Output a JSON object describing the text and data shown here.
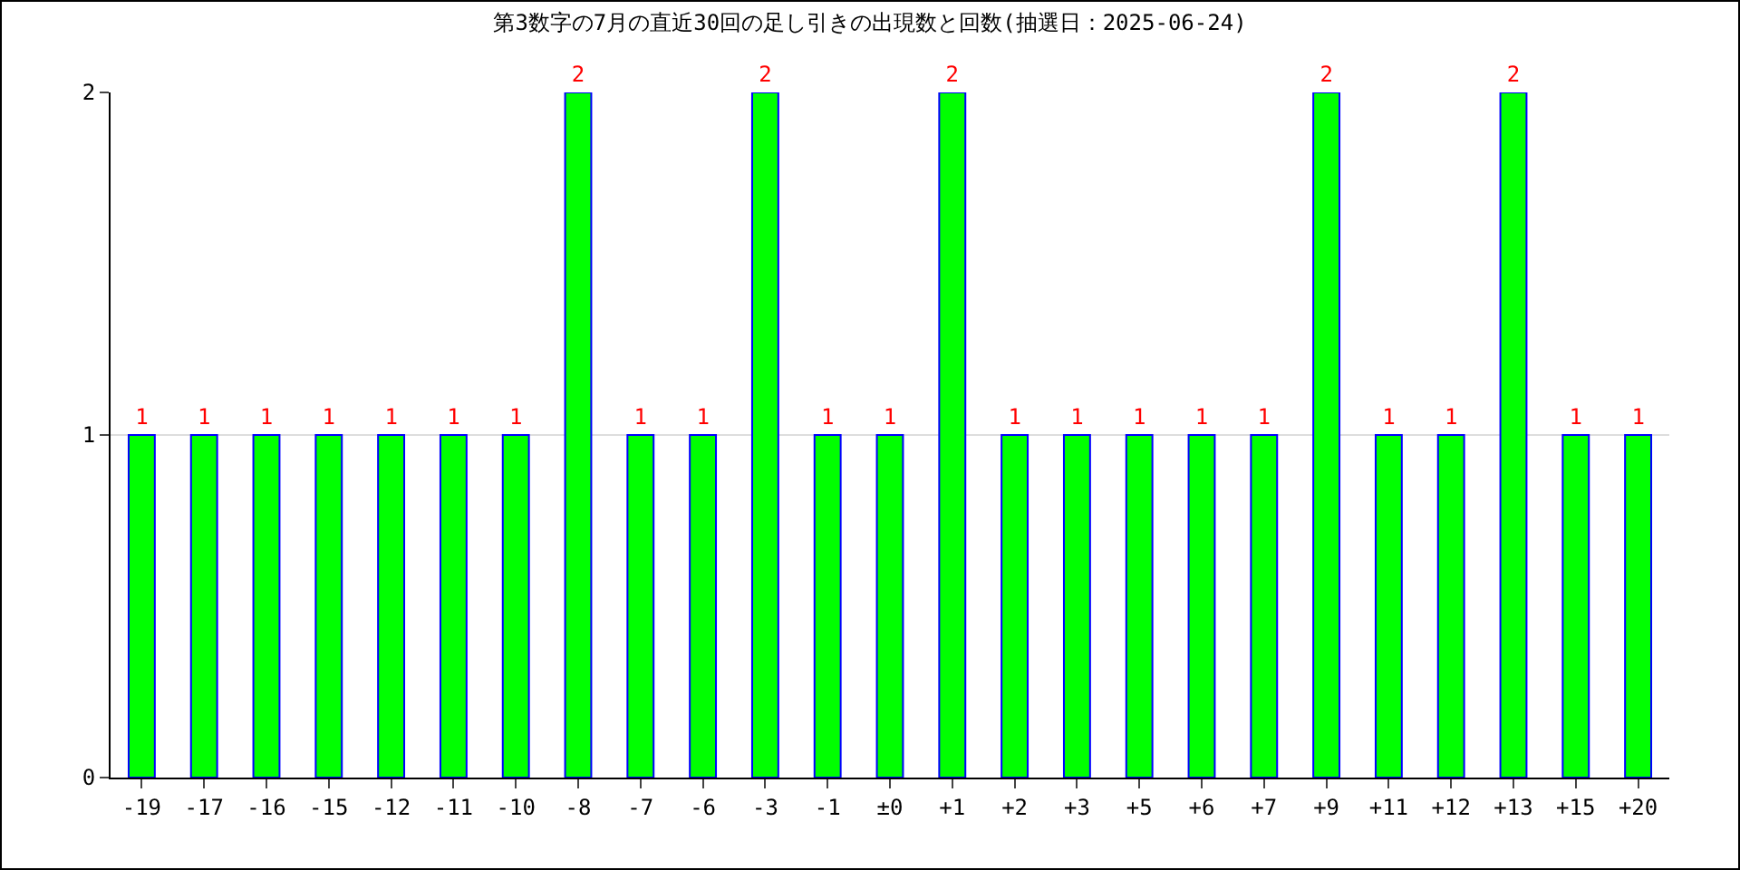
{
  "chart_data": {
    "type": "bar",
    "title": "第3数字の7月の直近30回の足し引きの出現数と回数(抽選日：2025-06-24)",
    "categories": [
      "-19",
      "-17",
      "-16",
      "-15",
      "-12",
      "-11",
      "-10",
      "-8",
      "-7",
      "-6",
      "-3",
      "-1",
      "±0",
      "+1",
      "+2",
      "+3",
      "+5",
      "+6",
      "+7",
      "+9",
      "+11",
      "+12",
      "+13",
      "+15",
      "+20"
    ],
    "values": [
      1,
      1,
      1,
      1,
      1,
      1,
      1,
      2,
      1,
      1,
      2,
      1,
      1,
      2,
      1,
      1,
      1,
      1,
      1,
      2,
      1,
      1,
      2,
      1,
      1
    ],
    "color": "#00ff00",
    "ylim": [
      0,
      2
    ],
    "yticks": [
      0,
      1,
      2
    ],
    "grid": "y",
    "data_labels": true
  }
}
